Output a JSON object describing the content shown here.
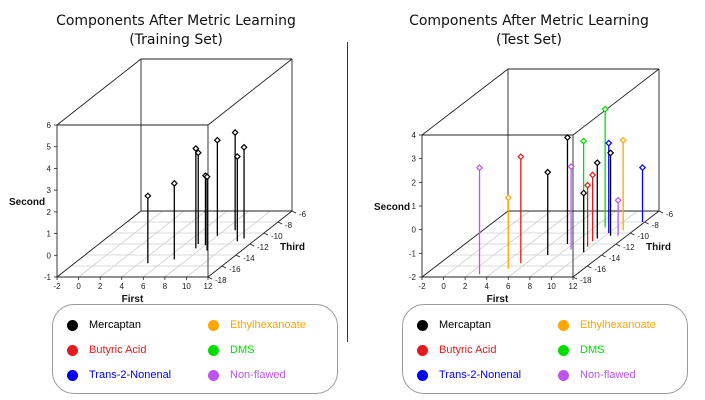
{
  "legend": {
    "items": [
      {
        "label": "Mercaptan",
        "color": "#000000"
      },
      {
        "label": "Butyric Acid",
        "color": "#e41a1c"
      },
      {
        "label": "Trans-2-Nonenal",
        "color": "#0000ff"
      },
      {
        "label": "Ethylhexanoate",
        "color": "#ffa500"
      },
      {
        "label": "DMS",
        "color": "#00dd00"
      },
      {
        "label": "Non-flawed",
        "color": "#bb55ee"
      }
    ]
  },
  "chart_data": [
    {
      "type": "scatter",
      "subtype": "3d-scatter-with-drop-lines",
      "title_line1": "Components After  Metric Learning",
      "title_line2": "(Training Set)",
      "xlabel": "First",
      "ylabel": "Second",
      "zlabel": "Third",
      "x_ticks": [
        "-2",
        "0",
        "2",
        "4",
        "6",
        "8",
        "10",
        "12"
      ],
      "y_ticks": [
        "-1",
        "0",
        "1",
        "2",
        "3",
        "4",
        "5",
        "6"
      ],
      "z_ticks": [
        "-18",
        "-16",
        "-14",
        "-12",
        "-10",
        "-8",
        "-6"
      ],
      "xlim": [
        -2,
        12
      ],
      "ylim": [
        -1,
        6
      ],
      "zlim": [
        -18,
        -6
      ],
      "grid": true,
      "points": [
        {
          "first": 4.8,
          "second": 2.1,
          "third": -15.5,
          "color": "#000000"
        },
        {
          "first": 6.8,
          "second": 2.5,
          "third": -14.8,
          "color": "#000000"
        },
        {
          "first": 7.2,
          "second": 3.2,
          "third": -12.0,
          "color": "#000000"
        },
        {
          "first": 7.5,
          "second": 3.6,
          "third": -12.8,
          "color": "#000000"
        },
        {
          "first": 8.0,
          "second": 2.2,
          "third": -12.2,
          "color": "#000000"
        },
        {
          "first": 8.8,
          "second": 2.4,
          "third": -13.2,
          "color": "#000000"
        },
        {
          "first": 8.0,
          "second": 3.4,
          "third": -10.5,
          "color": "#000000"
        },
        {
          "first": 9.0,
          "second": 3.5,
          "third": -9.5,
          "color": "#000000"
        },
        {
          "first": 10.5,
          "second": 2.9,
          "third": -11.5,
          "color": "#000000"
        },
        {
          "first": 10.8,
          "second": 3.2,
          "third": -11.0,
          "color": "#000000"
        }
      ]
    },
    {
      "type": "scatter",
      "subtype": "3d-scatter-with-drop-lines",
      "title_line1": "Components After  Metric Learning",
      "title_line2": "(Test Set)",
      "xlabel": "First",
      "ylabel": "Second",
      "zlabel": "Third",
      "x_ticks": [
        "-2",
        "0",
        "2",
        "4",
        "6",
        "8",
        "10",
        "12"
      ],
      "y_ticks": [
        "-2",
        "-1",
        "0",
        "1",
        "2",
        "3",
        "4"
      ],
      "z_ticks": [
        "-18",
        "-16",
        "-14",
        "-12",
        "-10",
        "-8",
        "-6"
      ],
      "xlim": [
        -2,
        12
      ],
      "ylim": [
        -2,
        4
      ],
      "zlim": [
        -18,
        -6
      ],
      "grid": true,
      "points": [
        {
          "first": 3.0,
          "second": 2.5,
          "third": -17.5,
          "color": "#bb55ee"
        },
        {
          "first": 5.0,
          "second": 1.0,
          "third": -16.5,
          "color": "#ffa500"
        },
        {
          "first": 5.5,
          "second": 2.5,
          "third": -15.5,
          "color": "#e41a1c"
        },
        {
          "first": 7.5,
          "second": 2.5,
          "third": -12.0,
          "color": "#000000"
        },
        {
          "first": 7.0,
          "second": 1.5,
          "third": -14.0,
          "color": "#000000"
        },
        {
          "first": 8.5,
          "second": 1.5,
          "third": -13.0,
          "color": "#bb55ee"
        },
        {
          "first": 8.0,
          "second": 2.0,
          "third": -10.5,
          "color": "#00dd00"
        },
        {
          "first": 9.0,
          "second": 3.0,
          "third": -9.0,
          "color": "#00dd00"
        },
        {
          "first": 9.5,
          "second": 0.8,
          "third": -11.5,
          "color": "#e41a1c"
        },
        {
          "first": 9.7,
          "second": 0.6,
          "third": -12.5,
          "color": "#e41a1c"
        },
        {
          "first": 9.6,
          "second": 1.2,
          "third": -11.0,
          "color": "#000000"
        },
        {
          "first": 10.0,
          "second": 0.5,
          "third": -13.5,
          "color": "#000000"
        },
        {
          "first": 10.0,
          "second": 1.8,
          "third": -10.0,
          "color": "#0000ff"
        },
        {
          "first": 10.5,
          "second": 1.5,
          "third": -10.5,
          "color": "#000000"
        },
        {
          "first": 11.0,
          "second": 1.8,
          "third": -9.5,
          "color": "#ffa500"
        },
        {
          "first": 11.2,
          "second": -0.5,
          "third": -10.5,
          "color": "#bb55ee"
        },
        {
          "first": 11.8,
          "second": 0.3,
          "third": -8.0,
          "color": "#0000ff"
        }
      ]
    }
  ]
}
